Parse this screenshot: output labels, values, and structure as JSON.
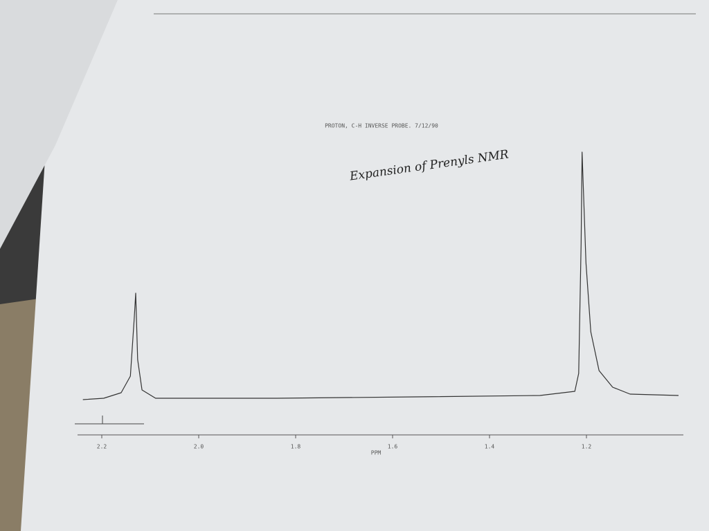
{
  "chart_data": {
    "type": "line",
    "title": "PROTON, C-H INVERSE PROBE. 7/12/90",
    "annotation": "Expansion of Prenyls NMR",
    "x_label": "PPM",
    "x": [
      2.239,
      2.196,
      2.16,
      2.141,
      2.133,
      2.13,
      2.126,
      2.117,
      2.089,
      1.839,
      1.553,
      1.296,
      1.224,
      1.216,
      1.211,
      1.209,
      1.201,
      1.191,
      1.174,
      1.146,
      1.11,
      1.01
    ],
    "series": [
      {
        "color": "#333333",
        "values": [
          5.5,
          6,
          8,
          14,
          35,
          44,
          20,
          9,
          6,
          6,
          6.5,
          7,
          8.5,
          15,
          62,
          95,
          55,
          30,
          16,
          10,
          7.5,
          7
        ]
      }
    ],
    "xlim": [
      2.25,
      1.0
    ],
    "xticks": [
      2.2,
      {
        "value": 2,
        "label": "2.0"
      },
      1.8,
      1.6,
      1.4,
      1.2
    ],
    "ylim": [
      0,
      100
    ]
  }
}
